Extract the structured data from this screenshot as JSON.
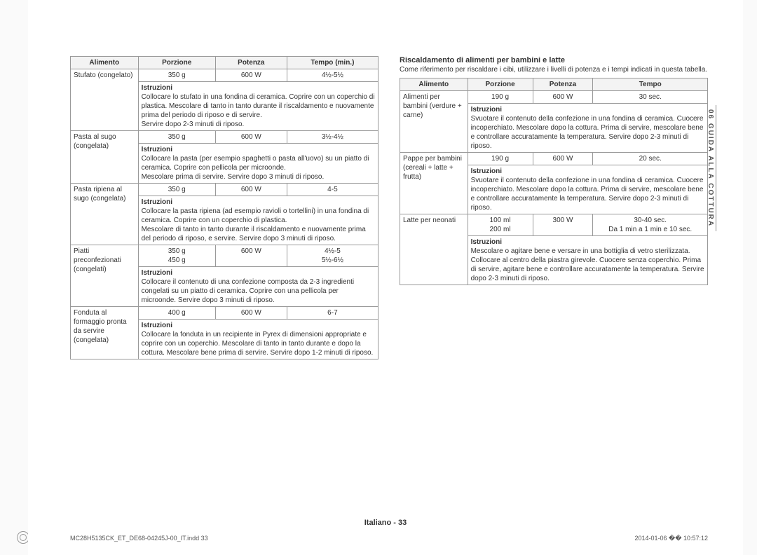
{
  "sideTab": "06 GUIDA ALLA COTTURA",
  "footer": "Italiano - 33",
  "printFile": "MC28H5135CK_ET_DE68-04245J-00_IT.indd   33",
  "printTime": "2014-01-06   �� 10:57:12",
  "leftTable": {
    "headers": [
      "Alimento",
      "Porzione",
      "Potenza",
      "Tempo (min.)"
    ],
    "rows": [
      {
        "food": "Stufato (congelato)",
        "vals": [
          "350 g",
          "600 W",
          "4½-5½"
        ],
        "instr": "Collocare lo stufato in una fondina di ceramica. Coprire con un coperchio di plastica. Mescolare di tanto in tanto durante il riscaldamento e nuovamente prima del periodo di riposo e di servire.\nServire dopo 2-3 minuti di riposo."
      },
      {
        "food": "Pasta al sugo (congelata)",
        "vals": [
          "350 g",
          "600 W",
          "3½-4½"
        ],
        "instr": "Collocare la pasta (per esempio spaghetti o pasta all'uovo) su un piatto di ceramica. Coprire con pellicola per microonde.\nMescolare prima di servire. Servire dopo 3 minuti di riposo."
      },
      {
        "food": "Pasta ripiena al sugo (congelata)",
        "vals": [
          "350 g",
          "600 W",
          "4-5"
        ],
        "instr": "Collocare la pasta ripiena (ad esempio ravioli o tortellini) in una fondina di ceramica. Coprire con un coperchio di plastica.\nMescolare di tanto in tanto durante il riscaldamento e nuovamente prima del periodo di riposo, e servire. Servire dopo 3 minuti di riposo."
      },
      {
        "food": "Piatti preconfezionati (congelati)",
        "vals": [
          "350 g\n450 g",
          "600 W",
          "4½-5\n5½-6½"
        ],
        "instr": "Collocare il contenuto di una confezione composta da 2-3 ingredienti congelati su un piatto di ceramica. Coprire con una pellicola per microonde. Servire dopo 3 minuti di riposo."
      },
      {
        "food": "Fonduta al formaggio pronta da servire (congelata)",
        "vals": [
          "400 g",
          "600 W",
          "6-7"
        ],
        "instr": "Collocare la fonduta in un recipiente in Pyrex di dimensioni appropriate e coprire con un coperchio. Mescolare di tanto in tanto durante e dopo la cottura. Mescolare bene prima di servire. Servire dopo 1-2 minuti di riposo."
      }
    ]
  },
  "rightSection": {
    "title": "Riscaldamento di alimenti per bambini e latte",
    "intro": "Come riferimento per riscaldare i cibi, utilizzare i livelli di potenza e i tempi indicati in questa tabella.",
    "headers": [
      "Alimento",
      "Porzione",
      "Potenza",
      "Tempo"
    ],
    "rows": [
      {
        "food": "Alimenti per bambini (verdure + carne)",
        "vals": [
          "190 g",
          "600 W",
          "30 sec."
        ],
        "instr": "Svuotare il contenuto della confezione in una fondina di ceramica. Cuocere incoperchiato. Mescolare dopo la cottura. Prima di servire, mescolare bene e controllare accuratamente la temperatura. Servire dopo 2-3 minuti di riposo."
      },
      {
        "food": "Pappe per bambini (cereali + latte + frutta)",
        "vals": [
          "190 g",
          "600 W",
          "20 sec."
        ],
        "instr": "Svuotare il contenuto della confezione in una fondina di ceramica. Cuocere incoperchiato. Mescolare dopo la cottura. Prima di servire, mescolare bene e controllare accuratamente la temperatura. Servire dopo 2-3 minuti di riposo."
      },
      {
        "food": "Latte per neonati",
        "vals": [
          "100 ml\n200 ml",
          "300 W",
          "30-40 sec.\nDa 1 min a 1 min e 10 sec."
        ],
        "instr": "Mescolare o agitare bene e versare in una bottiglia di vetro sterilizzata. Collocare al centro della piastra girevole. Cuocere senza coperchio. Prima di servire, agitare bene e controllare accuratamente la temperatura. Servire dopo 2-3 minuti di riposo."
      }
    ]
  }
}
